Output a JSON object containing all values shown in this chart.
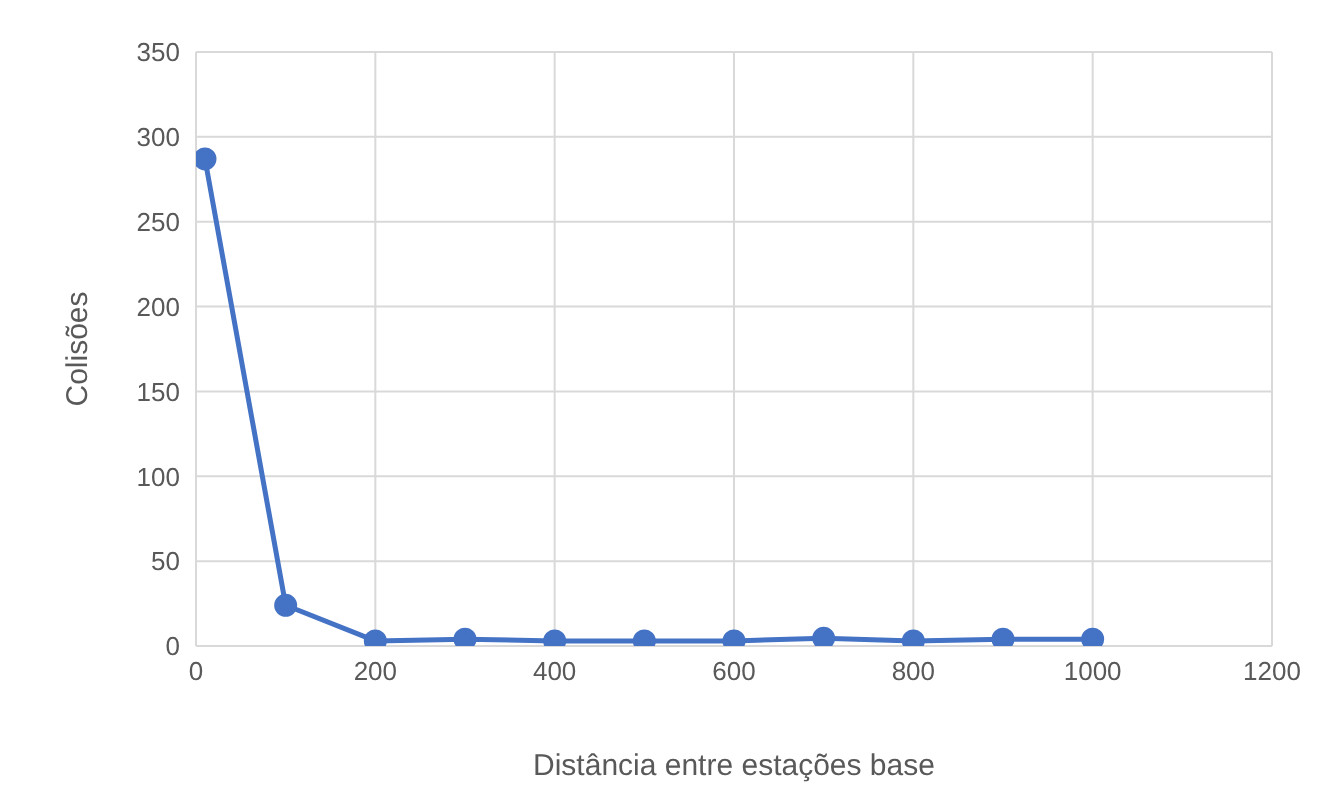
{
  "chart_data": {
    "type": "line",
    "xlabel": "Distância entre estações base",
    "ylabel": "Colisões",
    "x": [
      10,
      100,
      200,
      300,
      400,
      500,
      600,
      700,
      800,
      900,
      1000
    ],
    "series": [
      {
        "color": "#4472c4",
        "values": [
          287,
          24,
          3,
          4,
          3,
          3,
          3,
          4.5,
          3,
          4,
          4
        ]
      }
    ],
    "xlim": [
      0,
      1200
    ],
    "xticks": [
      0,
      200,
      400,
      600,
      800,
      1000,
      1200
    ],
    "ylim": [
      0,
      350
    ],
    "yticks": [
      0,
      50,
      100,
      150,
      200,
      250,
      300,
      350
    ],
    "grid": true,
    "marker": "circle",
    "line_style": "solid",
    "legend": false
  }
}
